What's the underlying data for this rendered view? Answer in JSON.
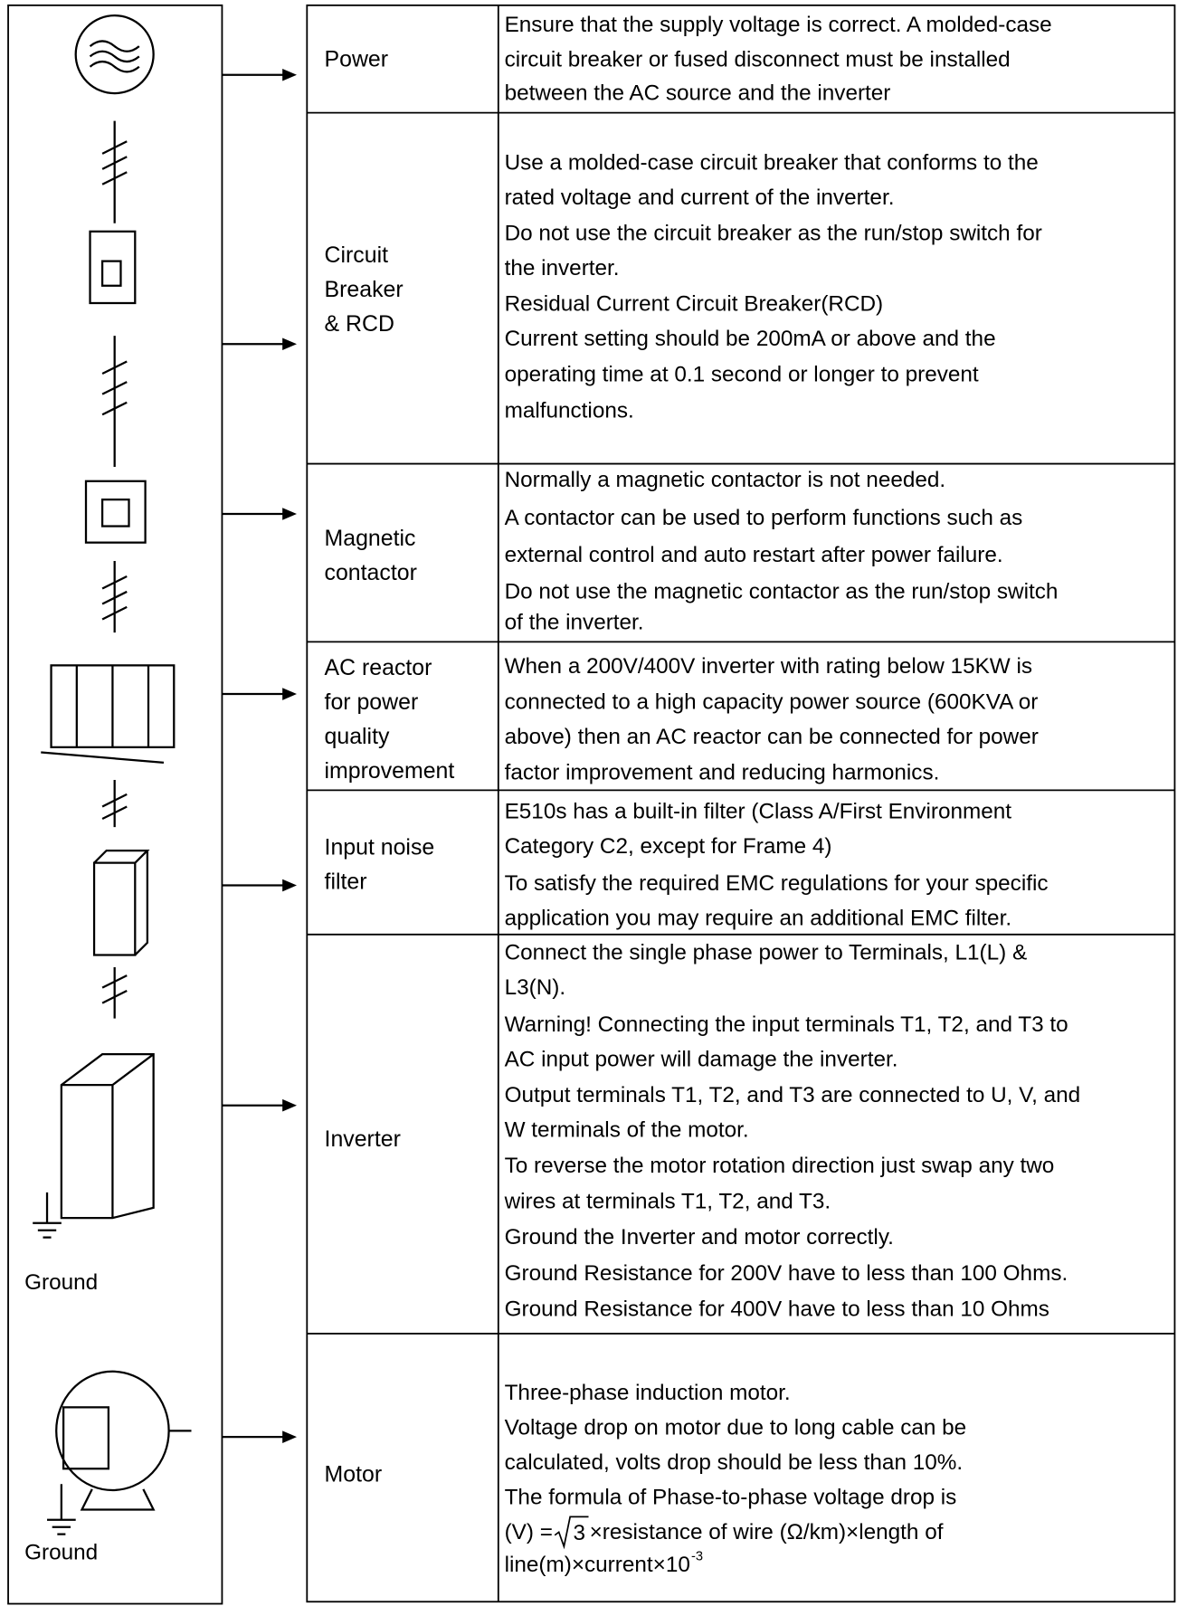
{
  "left": {
    "ground_labels": [
      "Ground",
      "Ground"
    ]
  },
  "rows": [
    {
      "label": [
        "Power"
      ],
      "lines": [
        "Ensure that the supply voltage is correct. A molded-case",
        "circuit breaker or fused disconnect must be installed",
        "between the AC source and the inverter"
      ]
    },
    {
      "label": [
        "Circuit",
        "Breaker",
        "& RCD"
      ],
      "lines": [
        "Use a molded-case circuit breaker that conforms to the",
        "rated voltage and current of the inverter.",
        "Do not use the circuit breaker as the run/stop switch for",
        "the inverter.",
        "Residual Current Circuit Breaker(RCD)",
        "Current setting should be 200mA or above and the",
        "operating time at 0.1 second or longer to prevent",
        "malfunctions."
      ]
    },
    {
      "label": [
        "Magnetic",
        "contactor"
      ],
      "lines": [
        "Normally a magnetic contactor is not needed.",
        "A contactor can be used to perform functions such as",
        "external control and auto restart after power failure.",
        "Do not use the magnetic contactor as the run/stop switch",
        "of the inverter."
      ]
    },
    {
      "label": [
        "AC reactor",
        "for power",
        "quality",
        "improvement"
      ],
      "lines": [
        "When a 200V/400V inverter with rating below 15KW is",
        "connected to a high capacity power source (600KVA or",
        "above) then an AC reactor can be connected for power",
        "factor improvement and reducing harmonics."
      ]
    },
    {
      "label": [
        "Input noise",
        "filter"
      ],
      "lines": [
        "E510s has a built-in filter (Class A/First Environment",
        "Category C2, except for Frame 4)",
        "To satisfy the required EMC regulations for your specific",
        "application you may require an additional EMC filter."
      ]
    },
    {
      "label": [
        "Inverter"
      ],
      "lines": [
        "Connect the single phase power to Terminals, L1(L) &",
        "L3(N).",
        "Warning! Connecting the input terminals T1, T2, and T3 to",
        "AC input power will damage the inverter.",
        "Output terminals T1, T2, and T3 are connected to U, V, and",
        "W terminals of the motor.",
        "To reverse the motor rotation direction just swap any two",
        "wires at terminals T1, T2, and T3.",
        "Ground the Inverter and motor correctly.",
        "Ground Resistance for 200V have to less than 100 Ohms.",
        "Ground Resistance for 400V have to less than 10 Ohms"
      ]
    },
    {
      "label": [
        "Motor"
      ],
      "lines": [
        "Three-phase induction motor.",
        "Voltage drop on motor due to long cable can be",
        "calculated, volts drop should be less than 10%.",
        "The formula of Phase-to-phase voltage drop is"
      ],
      "formula": {
        "prefix": "(V) =",
        "radicand": "3",
        "rest": " ×resistance of wire (Ω/km)×length of",
        "line2": "line(m)×current×10",
        "exponent": "-3"
      }
    }
  ]
}
